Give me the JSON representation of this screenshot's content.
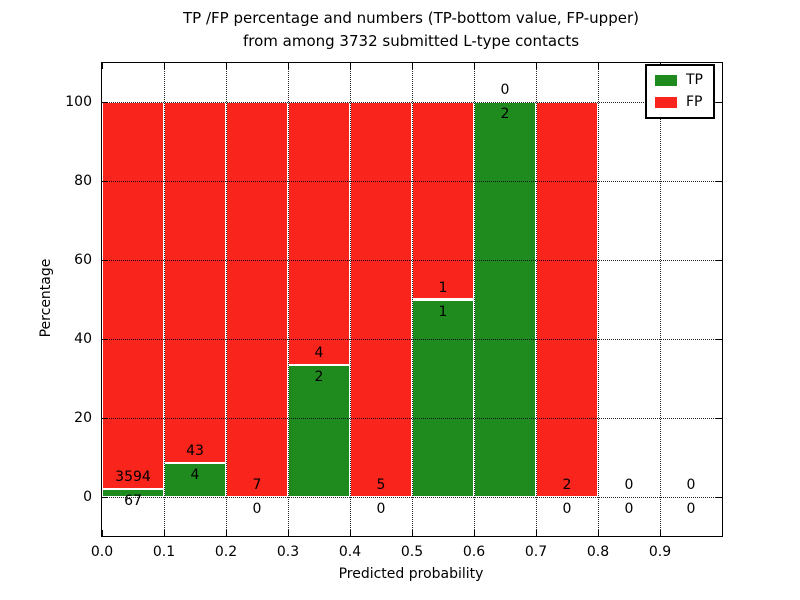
{
  "figure": {
    "title_line1": "TP /FP percentage and numbers (TP-bottom value, FP-upper)",
    "title_line2": "from among 3732 submitted L-type contacts"
  },
  "axes": {
    "xlabel": "Predicted probability",
    "ylabel": "Percentage"
  },
  "chart_data": {
    "type": "bar",
    "stacked": true,
    "normalized_to_percent": true,
    "title": "TP /FP percentage and numbers (TP-bottom value, FP-upper) from among 3732 submitted L-type contacts",
    "total_contacts": 3732,
    "xlabel": "Predicted probability",
    "ylabel": "Percentage",
    "xlim": [
      0.0,
      1.0
    ],
    "ylim": [
      -10,
      110
    ],
    "xticks": [
      "0.0",
      "0.1",
      "0.2",
      "0.3",
      "0.4",
      "0.5",
      "0.6",
      "0.7",
      "0.8",
      "0.9"
    ],
    "xtick_values": [
      0.0,
      0.1,
      0.2,
      0.3,
      0.4,
      0.5,
      0.6,
      0.7,
      0.8,
      0.9
    ],
    "yticks": [
      "0",
      "20",
      "40",
      "60",
      "80",
      "100"
    ],
    "ytick_values": [
      0,
      20,
      40,
      60,
      80,
      100
    ],
    "bin_edges": [
      0.0,
      0.1,
      0.2,
      0.3,
      0.4,
      0.5,
      0.6,
      0.7,
      0.8,
      0.9,
      1.0
    ],
    "grid": {
      "visible": true,
      "style": "dotted",
      "color": "#000000"
    },
    "series": [
      {
        "name": "TP",
        "color": "#1f8b1f",
        "counts": [
          67,
          4,
          0,
          2,
          0,
          1,
          2,
          0,
          0,
          0
        ]
      },
      {
        "name": "FP",
        "color": "#f9251d",
        "counts": [
          3594,
          43,
          7,
          4,
          5,
          1,
          0,
          2,
          0,
          0
        ]
      }
    ],
    "tp_percent_heights": [
      1.83,
      8.51,
      0.0,
      33.33,
      0.0,
      50.0,
      100.0,
      0.0,
      0.0,
      0.0
    ],
    "fp_percent_heights": [
      98.17,
      91.49,
      100.0,
      66.67,
      100.0,
      50.0,
      0.0,
      100.0,
      0.0,
      0.0
    ],
    "legend": {
      "position": "upper right",
      "entries": [
        {
          "label": "TP",
          "color": "#1f8b1f"
        },
        {
          "label": "FP",
          "color": "#f9251d"
        }
      ]
    }
  }
}
